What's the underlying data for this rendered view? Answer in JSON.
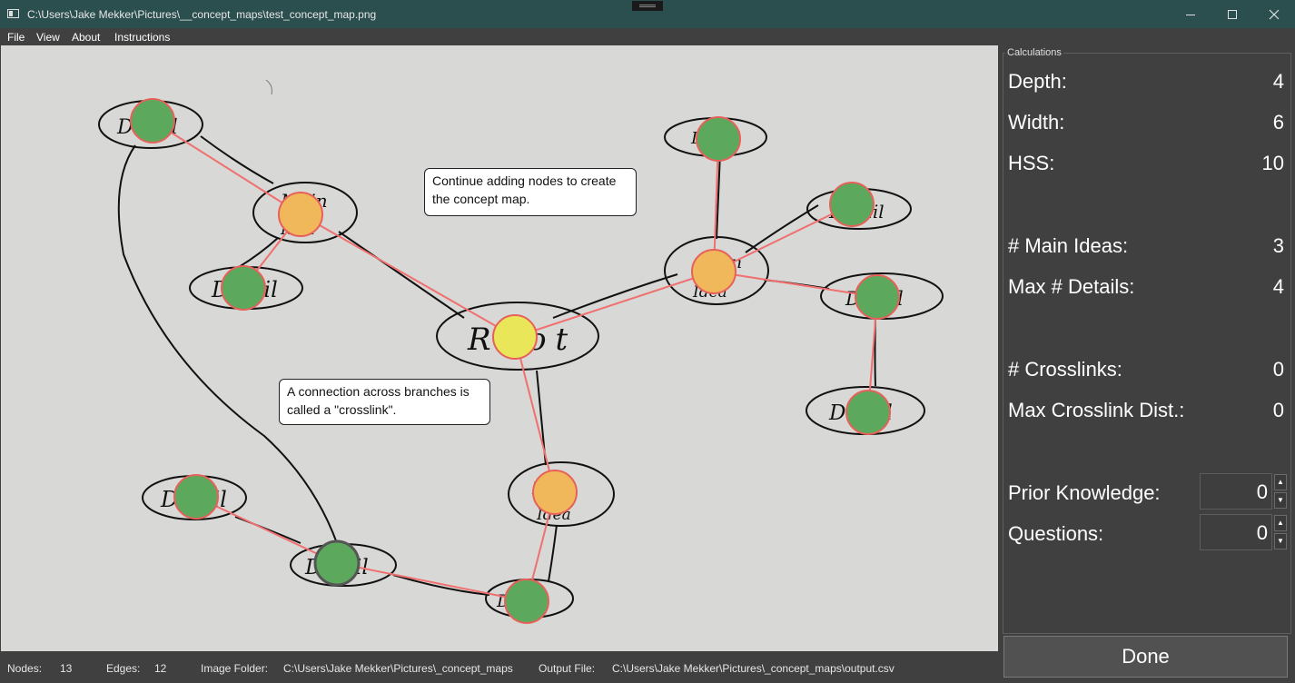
{
  "window": {
    "title": "C:\\Users\\Jake Mekker\\Pictures\\__concept_maps\\test_concept_map.png"
  },
  "menu": {
    "file": "File",
    "view": "View",
    "about": "About",
    "instructions": "Instructions"
  },
  "canvas": {
    "callouts": {
      "continue": "Continue adding nodes to create the concept map.",
      "crosslink": "A connection across branches is called a \"crosslink\"."
    },
    "handwriting": {
      "root": "Root",
      "main_idea": "Main Idea",
      "main": "Main",
      "idea": "Idea",
      "detail": "Detail"
    },
    "colors": {
      "paper": "#d8d8d6",
      "root_marker": "#e9e65a",
      "main_marker": "#f0b85a",
      "detail_marker": "#5ca85c",
      "marker_outline": "#e8605a",
      "selected_outline": "#555555",
      "edge": "#f07070",
      "ink": "#111111"
    }
  },
  "panel": {
    "group_title": "Calculations",
    "stats": {
      "depth_label": "Depth:",
      "depth_value": "4",
      "width_label": "Width:",
      "width_value": "6",
      "hss_label": "HSS:",
      "hss_value": "10",
      "main_ideas_label": "# Main Ideas:",
      "main_ideas_value": "3",
      "max_details_label": "Max # Details:",
      "max_details_value": "4",
      "crosslinks_label": "# Crosslinks:",
      "crosslinks_value": "0",
      "max_crosslink_dist_label": "Max Crosslink Dist.:",
      "max_crosslink_dist_value": "0"
    },
    "prior_knowledge": {
      "label": "Prior Knowledge:",
      "value": "0"
    },
    "questions": {
      "label": "Questions:",
      "value": "0"
    },
    "done_label": "Done"
  },
  "status": {
    "nodes_label": "Nodes:",
    "nodes_value": "13",
    "edges_label": "Edges:",
    "edges_value": "12",
    "image_folder_label": "Image Folder:",
    "image_folder_value": "C:\\Users\\Jake Mekker\\Pictures\\_concept_maps",
    "output_file_label": "Output File:",
    "output_file_value": "C:\\Users\\Jake Mekker\\Pictures\\_concept_maps\\output.csv"
  },
  "icons": {
    "app": "app-window-icon",
    "minimize": "minimize-icon",
    "maximize": "maximize-icon",
    "close": "close-icon",
    "spin_up": "spin-up-arrow-icon",
    "spin_down": "spin-down-arrow-icon"
  }
}
